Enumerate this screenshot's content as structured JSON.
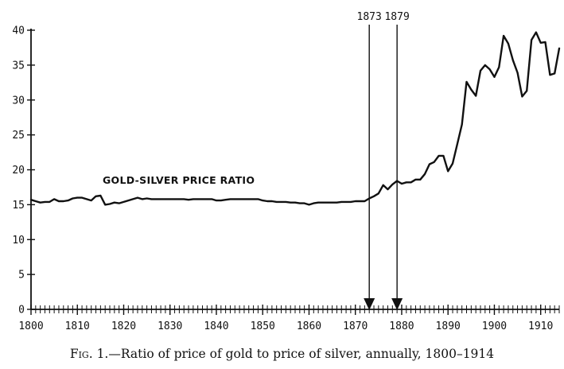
{
  "chart_data": {
    "type": "line",
    "series": [
      {
        "name": "GOLD-SILVER PRICE RATIO",
        "x": [
          1800,
          1801,
          1802,
          1803,
          1804,
          1805,
          1806,
          1807,
          1808,
          1809,
          1810,
          1811,
          1812,
          1813,
          1814,
          1815,
          1816,
          1817,
          1818,
          1819,
          1820,
          1821,
          1822,
          1823,
          1824,
          1825,
          1826,
          1827,
          1828,
          1829,
          1830,
          1831,
          1832,
          1833,
          1834,
          1835,
          1836,
          1837,
          1838,
          1839,
          1840,
          1841,
          1842,
          1843,
          1844,
          1845,
          1846,
          1847,
          1848,
          1849,
          1850,
          1851,
          1852,
          1853,
          1854,
          1855,
          1856,
          1857,
          1858,
          1859,
          1860,
          1861,
          1862,
          1863,
          1864,
          1865,
          1866,
          1867,
          1868,
          1869,
          1870,
          1871,
          1872,
          1873,
          1874,
          1875,
          1876,
          1877,
          1878,
          1879,
          1880,
          1881,
          1882,
          1883,
          1884,
          1885,
          1886,
          1887,
          1888,
          1889,
          1890,
          1891,
          1892,
          1893,
          1894,
          1895,
          1896,
          1897,
          1898,
          1899,
          1900,
          1901,
          1902,
          1903,
          1904,
          1905,
          1906,
          1907,
          1908,
          1909,
          1910,
          1911,
          1912,
          1913,
          1914
        ],
        "values": [
          15.7,
          15.5,
          15.3,
          15.4,
          15.4,
          15.8,
          15.5,
          15.5,
          15.6,
          15.9,
          16.0,
          16.0,
          15.8,
          15.6,
          16.2,
          16.3,
          15.0,
          15.1,
          15.3,
          15.2,
          15.4,
          15.6,
          15.8,
          16.0,
          15.8,
          15.9,
          15.8,
          15.8,
          15.8,
          15.8,
          15.8,
          15.8,
          15.8,
          15.8,
          15.7,
          15.8,
          15.8,
          15.8,
          15.8,
          15.8,
          15.6,
          15.6,
          15.7,
          15.8,
          15.8,
          15.8,
          15.8,
          15.8,
          15.8,
          15.8,
          15.6,
          15.5,
          15.5,
          15.4,
          15.4,
          15.4,
          15.3,
          15.3,
          15.2,
          15.2,
          15.0,
          15.2,
          15.3,
          15.3,
          15.3,
          15.3,
          15.3,
          15.4,
          15.4,
          15.4,
          15.5,
          15.5,
          15.5,
          15.9,
          16.2,
          16.6,
          17.8,
          17.2,
          17.9,
          18.4,
          18.0,
          18.2,
          18.2,
          18.6,
          18.6,
          19.4,
          20.8,
          21.1,
          22.0,
          22.0,
          19.8,
          20.9,
          23.7,
          26.5,
          32.6,
          31.5,
          30.6,
          34.2,
          35.0,
          34.4,
          33.3,
          34.7,
          39.2,
          38.1,
          35.7,
          33.9,
          30.5,
          31.3,
          38.6,
          39.7,
          38.2,
          38.3,
          33.6,
          33.8,
          37.4
        ]
      }
    ],
    "xlim": [
      1800,
      1914
    ],
    "ylim": [
      0,
      40
    ],
    "x_ticks": [
      1800,
      1810,
      1820,
      1830,
      1840,
      1850,
      1860,
      1870,
      1880,
      1890,
      1900,
      1910
    ],
    "y_ticks": [
      0,
      5,
      10,
      15,
      20,
      25,
      30,
      35,
      40
    ],
    "x_tick_labels": [
      "1800",
      "1810",
      "1820",
      "1830",
      "1840",
      "1850",
      "1860",
      "1870",
      "1880",
      "1890",
      "1900",
      "1910"
    ],
    "y_tick_labels": [
      "0",
      "5",
      "10",
      "15",
      "20",
      "25",
      "30",
      "35",
      "40"
    ],
    "annotations": [
      {
        "x": 1873,
        "label": "1873",
        "style": "vertical-arrow-down"
      },
      {
        "x": 1879,
        "label": "1879",
        "style": "vertical-arrow-down"
      }
    ],
    "series_label": "GOLD-SILVER PRICE RATIO",
    "grid": false,
    "minor_x_ticks_every": 1
  },
  "caption": {
    "fig": "Fig. 1.",
    "text": "—Ratio of price of gold to price of silver, annually, 1800–1914"
  },
  "colors": {
    "line": "#111111",
    "axis": "#111111",
    "background": "#ffffff"
  }
}
